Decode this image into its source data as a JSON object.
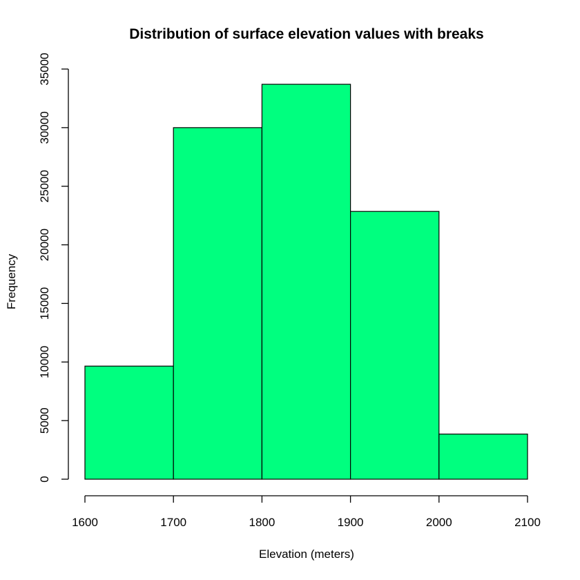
{
  "chart_data": {
    "type": "bar",
    "subtype": "histogram",
    "title": "Distribution of surface elevation values with breaks",
    "xlabel": "Elevation (meters)",
    "ylabel": "Frequency",
    "bins": [
      {
        "from": 1600,
        "to": 1700,
        "value": 9650
      },
      {
        "from": 1700,
        "to": 1800,
        "value": 30000
      },
      {
        "from": 1800,
        "to": 1900,
        "value": 33700
      },
      {
        "from": 1900,
        "to": 2000,
        "value": 22850
      },
      {
        "from": 2000,
        "to": 2100,
        "value": 3850
      }
    ],
    "xlim": [
      1600,
      2100
    ],
    "ylim": [
      0,
      35000
    ],
    "x_ticks": [
      1600,
      1700,
      1800,
      1900,
      2000,
      2100
    ],
    "y_ticks": [
      0,
      5000,
      10000,
      15000,
      20000,
      25000,
      30000,
      35000
    ],
    "bar_color": "#00FF7F",
    "edge_color": "#000000",
    "grid": false,
    "legend": "none"
  }
}
